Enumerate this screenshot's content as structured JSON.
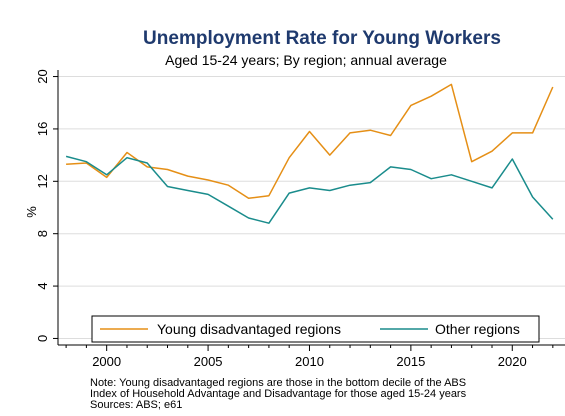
{
  "chart_data": {
    "type": "line",
    "title": "Unemployment Rate for Young Workers",
    "subtitle": "Aged 15-24 years; By region; annual average",
    "ylabel": "%",
    "xlabel": "",
    "xlim": [
      1997.6,
      2022.6
    ],
    "ylim": [
      -0.5,
      20.5
    ],
    "yticks": [
      0,
      4,
      8,
      12,
      16,
      20
    ],
    "xticks": [
      2000,
      2005,
      2010,
      2015,
      2020
    ],
    "grid": "horizontal",
    "legend_position": "bottom",
    "x": [
      1998,
      1999,
      2000,
      2001,
      2002,
      2003,
      2004,
      2005,
      2006,
      2007,
      2008,
      2009,
      2010,
      2011,
      2012,
      2013,
      2014,
      2015,
      2016,
      2017,
      2018,
      2019,
      2020,
      2021,
      2022
    ],
    "series": [
      {
        "name": "Young disadvantaged regions",
        "color": "#e58f16",
        "values": [
          13.3,
          13.4,
          12.3,
          14.2,
          13.1,
          12.9,
          12.4,
          12.1,
          11.7,
          10.7,
          10.9,
          13.8,
          15.8,
          14.0,
          15.7,
          15.9,
          15.5,
          17.8,
          18.5,
          19.4,
          13.5,
          14.3,
          15.7,
          15.7,
          19.2
        ]
      },
      {
        "name": "Other regions",
        "color": "#1a8c8c",
        "values": [
          13.9,
          13.5,
          12.5,
          13.8,
          13.4,
          11.6,
          11.3,
          11.0,
          10.1,
          9.2,
          8.8,
          11.1,
          11.5,
          11.3,
          11.7,
          11.9,
          13.1,
          12.9,
          12.2,
          12.5,
          12.0,
          11.5,
          13.7,
          10.8,
          9.1
        ]
      }
    ],
    "notes": [
      "Note: Young disadvantaged regions are those in the bottom decile of the ABS",
      "Index of Household Advantage and Disadvantage for those aged 15-24 years",
      "Sources: ABS; e61"
    ]
  },
  "colors": {
    "title": "#1f3a6e",
    "grid": "#dddddd",
    "axis": "#000000"
  }
}
